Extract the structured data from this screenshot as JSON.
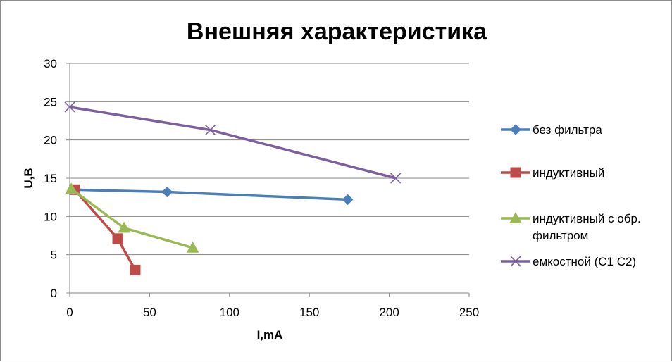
{
  "chart_data": {
    "type": "scatter",
    "title": "Внешняя характеристика",
    "xlabel": "I,mA",
    "ylabel": "U,B",
    "xlim": [
      0,
      250
    ],
    "ylim": [
      0,
      30
    ],
    "xticks": [
      "0",
      "50",
      "100",
      "150",
      "200",
      "250"
    ],
    "yticks": [
      "0",
      "5",
      "10",
      "15",
      "20",
      "25",
      "30"
    ],
    "grid": "horizontal",
    "legend_position": "right",
    "series": [
      {
        "name": "без фильтра",
        "color": "#4A7EBB",
        "marker": "diamond",
        "x": [
          3,
          61,
          174
        ],
        "y": [
          13.5,
          13.2,
          12.2
        ]
      },
      {
        "name": "индуктивный",
        "color": "#BE4B48",
        "marker": "square",
        "x": [
          3,
          30,
          41
        ],
        "y": [
          13.5,
          7.1,
          3.0
        ]
      },
      {
        "name": "индуктивный с обр. фильтром",
        "name_lines": [
          "индуктивный с обр.",
          "фильтром"
        ],
        "color": "#98B954",
        "marker": "triangle",
        "x": [
          1,
          34,
          77
        ],
        "y": [
          13.6,
          8.5,
          5.9
        ]
      },
      {
        "name": "емкостной (С1 С2)",
        "color": "#7D5FA0",
        "marker": "x",
        "x": [
          0,
          88,
          204
        ],
        "y": [
          24.3,
          21.3,
          15.0
        ]
      }
    ]
  }
}
